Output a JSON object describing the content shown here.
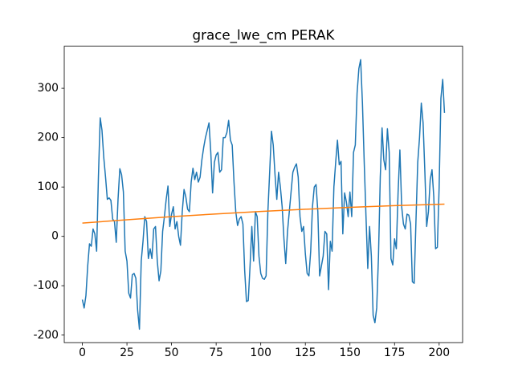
{
  "chart_data": {
    "type": "line",
    "title": "grace_lwe_cm PERAK",
    "x": [
      0,
      1,
      2,
      3,
      4,
      5,
      6,
      7,
      8,
      9,
      10,
      11,
      12,
      13,
      14,
      15,
      16,
      17,
      18,
      19,
      20,
      21,
      22,
      23,
      24,
      25,
      26,
      27,
      28,
      29,
      30,
      31,
      32,
      33,
      34,
      35,
      36,
      37,
      38,
      39,
      40,
      41,
      42,
      43,
      44,
      45,
      46,
      47,
      48,
      49,
      50,
      51,
      52,
      53,
      54,
      55,
      56,
      57,
      58,
      59,
      60,
      61,
      62,
      63,
      64,
      65,
      66,
      67,
      68,
      69,
      70,
      71,
      72,
      73,
      74,
      75,
      76,
      77,
      78,
      79,
      80,
      81,
      82,
      83,
      84,
      85,
      86,
      87,
      88,
      89,
      90,
      91,
      92,
      93,
      94,
      95,
      96,
      97,
      98,
      99,
      100,
      101,
      102,
      103,
      104,
      105,
      106,
      107,
      108,
      109,
      110,
      111,
      112,
      113,
      114,
      115,
      116,
      117,
      118,
      119,
      120,
      121,
      122,
      123,
      124,
      125,
      126,
      127,
      128,
      129,
      130,
      131,
      132,
      133,
      134,
      135,
      136,
      137,
      138,
      139,
      140,
      141,
      142,
      143,
      144,
      145,
      146,
      147,
      148,
      149,
      150,
      151,
      152,
      153,
      154,
      155,
      156,
      157,
      158,
      159,
      160,
      161,
      162,
      163,
      164,
      165,
      166,
      167,
      168,
      169,
      170,
      171,
      172,
      173,
      174,
      175,
      176,
      177,
      178,
      179,
      180,
      181,
      182,
      183,
      184,
      185,
      186,
      187,
      188,
      189,
      190,
      191,
      192,
      193,
      194,
      195,
      196,
      197,
      198,
      199,
      200,
      201,
      202,
      203
    ],
    "series": [
      {
        "color": "#1f77b4",
        "values": [
          -128,
          -145,
          -120,
          -60,
          -15,
          -20,
          15,
          5,
          -30,
          120,
          240,
          215,
          160,
          120,
          75,
          78,
          73,
          35,
          30,
          -12,
          75,
          137,
          125,
          90,
          -30,
          -50,
          -115,
          -125,
          -78,
          -75,
          -85,
          -150,
          -188,
          -50,
          -10,
          40,
          30,
          -45,
          -25,
          -45,
          15,
          20,
          -50,
          -90,
          -70,
          10,
          40,
          75,
          102,
          20,
          45,
          60,
          15,
          30,
          0,
          -18,
          50,
          95,
          80,
          55,
          50,
          110,
          138,
          115,
          130,
          110,
          120,
          155,
          180,
          200,
          215,
          230,
          170,
          88,
          150,
          165,
          170,
          130,
          135,
          200,
          200,
          210,
          235,
          195,
          185,
          110,
          50,
          22,
          35,
          40,
          25,
          -70,
          -132,
          -130,
          -60,
          20,
          -50,
          50,
          40,
          -40,
          -75,
          -85,
          -87,
          -80,
          50,
          130,
          213,
          185,
          125,
          75,
          130,
          100,
          60,
          -5,
          -55,
          10,
          50,
          90,
          130,
          140,
          147,
          120,
          40,
          10,
          20,
          -35,
          -75,
          -80,
          -30,
          60,
          100,
          105,
          50,
          -80,
          -60,
          -40,
          10,
          5,
          -108,
          -10,
          -30,
          100,
          150,
          195,
          145,
          152,
          5,
          88,
          70,
          40,
          90,
          40,
          170,
          185,
          290,
          340,
          358,
          270,
          150,
          40,
          -65,
          20,
          -40,
          -160,
          -175,
          -145,
          -40,
          120,
          220,
          155,
          135,
          218,
          170,
          -45,
          -58,
          -5,
          -25,
          90,
          175,
          60,
          25,
          15,
          45,
          43,
          25,
          -92,
          -95,
          30,
          150,
          200,
          270,
          230,
          130,
          20,
          50,
          115,
          135,
          80,
          -25,
          -22,
          100,
          280,
          318,
          250
        ]
      },
      {
        "color": "#ff7f0e",
        "x": [
          0,
          25,
          50,
          75,
          100,
          125,
          150,
          175,
          203
        ],
        "values": [
          27,
          33.7,
          39.9,
          45.5,
          50.5,
          55.0,
          58.9,
          62.2,
          65.3
        ]
      }
    ],
    "xlim": [
      -10.15,
      213.15
    ],
    "ylim": [
      -215.3,
      385.3
    ],
    "xticks": [
      0,
      25,
      50,
      75,
      100,
      125,
      150,
      175,
      200
    ],
    "yticks": [
      -200,
      -100,
      0,
      100,
      200,
      300
    ],
    "grid": false
  }
}
